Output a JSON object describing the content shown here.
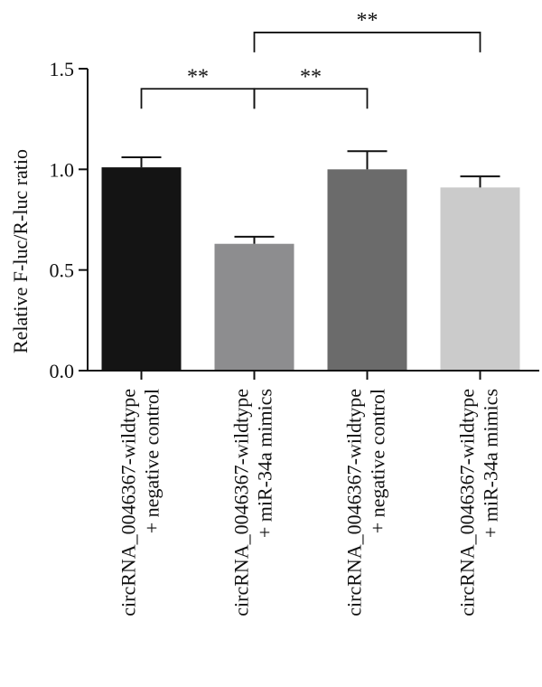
{
  "chart_data": {
    "type": "bar",
    "ylabel": "Relative F-luc/R-luc ratio",
    "ylim": [
      0,
      1.5
    ],
    "yticks": [
      0.0,
      0.5,
      1.0,
      1.5
    ],
    "ytick_labels": [
      "0.0",
      "0.5",
      "1.0",
      "1.5"
    ],
    "categories": [
      "circRNA_0046367-wildtype\n+ negative control",
      "circRNA_0046367-wildtype\n+ miR-34a mimics",
      "circRNA_0046367-wildtype\n+ negative control",
      "circRNA_0046367-wildtype\n+ miR-34a mimics"
    ],
    "values": [
      1.01,
      0.63,
      1.0,
      0.91
    ],
    "errors": [
      0.05,
      0.035,
      0.09,
      0.055
    ],
    "bar_colors": [
      "#141414",
      "#8d8d8f",
      "#6b6b6b",
      "#cbcbcb"
    ],
    "significance": [
      {
        "from": 0,
        "to": 1,
        "label": "**",
        "level": 1.4
      },
      {
        "from": 1,
        "to": 2,
        "label": "**",
        "level": 1.4
      },
      {
        "from": 1,
        "to": 3,
        "label": "**",
        "level": 1.68
      }
    ]
  }
}
